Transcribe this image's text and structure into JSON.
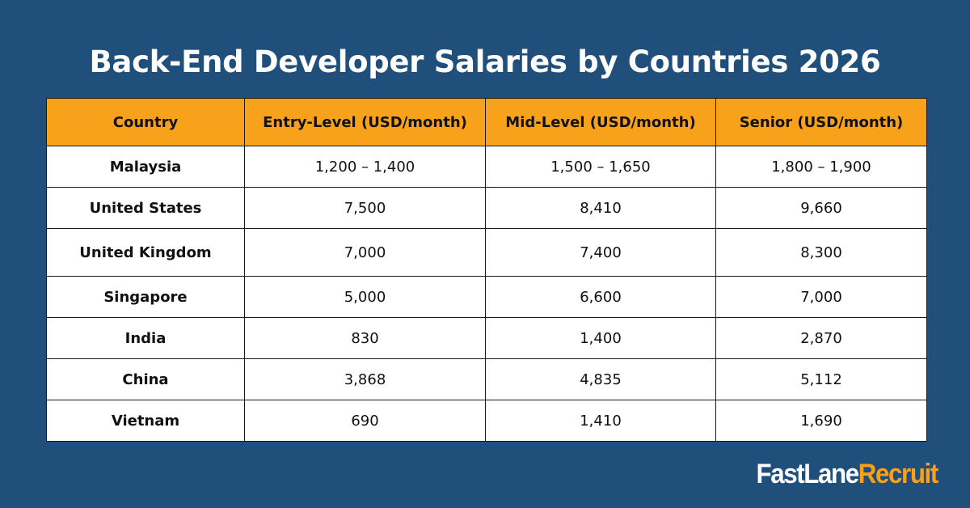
{
  "chart_data": {
    "type": "table",
    "title": "Back-End Developer Salaries by Countries 2026",
    "columns": [
      "Country",
      "Entry-Level (USD/month)",
      "Mid-Level (USD/month)",
      "Senior (USD/month)"
    ],
    "rows": [
      {
        "country": "Malaysia",
        "entry": "1,200 – 1,400",
        "mid": "1,500 – 1,650",
        "senior": "1,800 – 1,900"
      },
      {
        "country": "United States",
        "entry": "7,500",
        "mid": "8,410",
        "senior": "9,660"
      },
      {
        "country": "United Kingdom",
        "entry": "7,000",
        "mid": "7,400",
        "senior": "8,300"
      },
      {
        "country": "Singapore",
        "entry": "5,000",
        "mid": "6,600",
        "senior": "7,000"
      },
      {
        "country": "India",
        "entry": "830",
        "mid": "1,400",
        "senior": "2,870"
      },
      {
        "country": "China",
        "entry": "3,868",
        "mid": "4,835",
        "senior": "5,112"
      },
      {
        "country": "Vietnam",
        "entry": "690",
        "mid": "1,410",
        "senior": "1,690"
      }
    ]
  },
  "brand": {
    "logo_part1": "FastLane",
    "logo_part2": "Recruit"
  },
  "colors": {
    "background": "#1f4f7a",
    "header": "#f7a21a",
    "accent": "#f7a21a"
  }
}
